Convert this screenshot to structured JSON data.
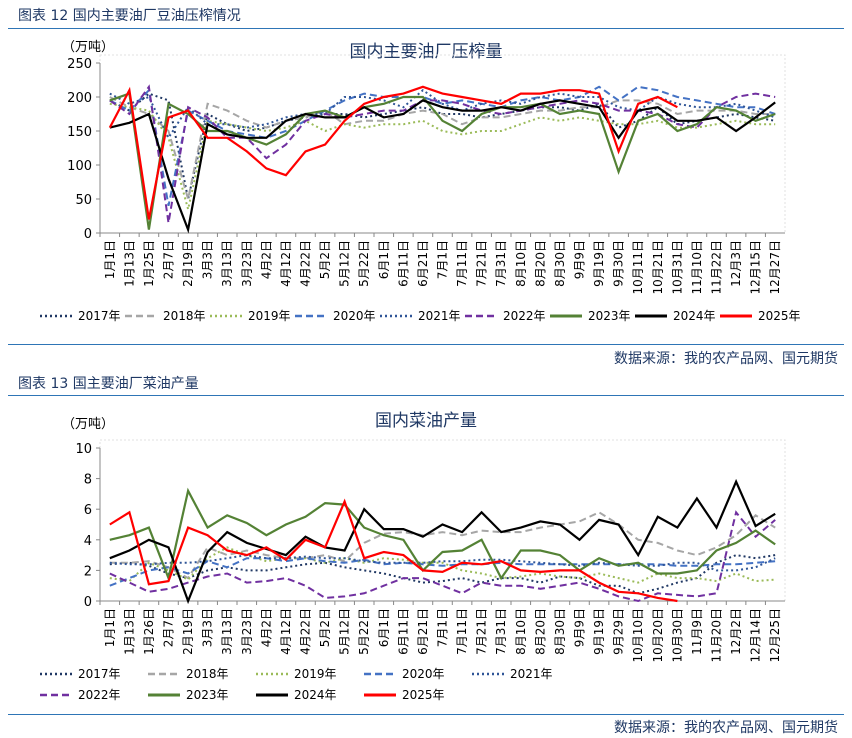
{
  "figures": [
    {
      "heading": "图表 12 国内主要油厂豆油压榨情况",
      "source": "数据来源：我的农产品网、国元期货"
    },
    {
      "heading": "图表 13 国主要油厂菜油产量",
      "source": "数据来源：我的农产品网、国元期货"
    }
  ],
  "chart_data": [
    {
      "type": "line",
      "title": "国内主要油厂压榨量",
      "ylabel": "（万吨）",
      "ylim": [
        0,
        250
      ],
      "yticks": [
        0,
        50,
        100,
        150,
        200,
        250
      ],
      "grid": false,
      "legend": "bottom",
      "categories": [
        "1月1日",
        "1月13日",
        "1月25日",
        "2月7日",
        "2月19日",
        "3月3日",
        "3月13日",
        "3月23日",
        "4月2日",
        "4月12日",
        "4月22日",
        "5月2日",
        "5月12日",
        "5月22日",
        "6月1日",
        "6月11日",
        "6月21日",
        "7月1日",
        "7月11日",
        "7月21日",
        "7月31日",
        "8月10日",
        "8月20日",
        "8月30日",
        "9月9日",
        "9月19日",
        "9月30日",
        "10月11日",
        "10月21日",
        "10月31日",
        "11月10日",
        "11月22日",
        "12月3日",
        "12月15日",
        "12月27日"
      ],
      "series": [
        {
          "name": "2017年",
          "color": "#203864",
          "style": "dot",
          "values": [
            195,
            180,
            205,
            195,
            50,
            175,
            160,
            150,
            155,
            165,
            170,
            175,
            175,
            170,
            175,
            180,
            185,
            175,
            175,
            170,
            175,
            180,
            185,
            185,
            180,
            190,
            155,
            165,
            185,
            160,
            165,
            170,
            175,
            170,
            165
          ]
        },
        {
          "name": "2018年",
          "color": "#a6a6a6",
          "style": "dash",
          "values": [
            200,
            185,
            175,
            150,
            50,
            190,
            180,
            165,
            155,
            165,
            170,
            180,
            160,
            165,
            165,
            175,
            180,
            175,
            160,
            170,
            170,
            175,
            180,
            180,
            185,
            185,
            195,
            195,
            190,
            175,
            180,
            180,
            180,
            175,
            175
          ]
        },
        {
          "name": "2019年",
          "color": "#9bbb59",
          "style": "dot",
          "values": [
            190,
            185,
            180,
            140,
            35,
            165,
            160,
            155,
            150,
            155,
            165,
            150,
            160,
            155,
            160,
            160,
            165,
            150,
            145,
            150,
            150,
            160,
            170,
            165,
            170,
            165,
            160,
            160,
            165,
            155,
            155,
            160,
            165,
            160,
            160
          ]
        },
        {
          "name": "2020年",
          "color": "#4472c4",
          "style": "dash",
          "values": [
            195,
            180,
            210,
            40,
            180,
            165,
            150,
            145,
            140,
            150,
            165,
            180,
            195,
            205,
            200,
            200,
            200,
            190,
            195,
            190,
            185,
            195,
            200,
            195,
            200,
            215,
            195,
            215,
            210,
            200,
            195,
            190,
            185,
            185,
            175
          ]
        },
        {
          "name": "2021年",
          "color": "#2f5597",
          "style": "dot",
          "values": [
            205,
            190,
            200,
            140,
            185,
            160,
            160,
            155,
            160,
            170,
            175,
            175,
            200,
            200,
            195,
            185,
            210,
            190,
            180,
            190,
            195,
            190,
            200,
            205,
            200,
            200,
            185,
            180,
            200,
            190,
            185,
            185,
            190,
            180,
            170
          ]
        },
        {
          "name": "2022年",
          "color": "#7030a0",
          "style": "dash",
          "values": [
            195,
            175,
            215,
            15,
            185,
            170,
            140,
            140,
            110,
            130,
            165,
            175,
            170,
            175,
            180,
            180,
            195,
            195,
            190,
            180,
            175,
            180,
            185,
            190,
            195,
            190,
            180,
            180,
            175,
            160,
            155,
            185,
            200,
            205,
            200
          ]
        },
        {
          "name": "2023年",
          "color": "#548235",
          "style": "solid",
          "values": [
            195,
            205,
            5,
            190,
            175,
            150,
            150,
            140,
            130,
            145,
            175,
            180,
            170,
            185,
            190,
            200,
            200,
            165,
            150,
            175,
            185,
            185,
            190,
            175,
            180,
            175,
            90,
            165,
            175,
            150,
            160,
            185,
            180,
            165,
            175
          ]
        },
        {
          "name": "2024年",
          "color": "#000000",
          "style": "solid",
          "values": [
            155,
            162,
            175,
            80,
            5,
            160,
            145,
            140,
            140,
            165,
            175,
            170,
            170,
            185,
            170,
            175,
            195,
            185,
            180,
            180,
            185,
            180,
            190,
            195,
            190,
            185,
            140,
            180,
            185,
            165,
            165,
            170,
            150,
            170,
            192
          ]
        },
        {
          "name": "2025年",
          "color": "#ff0000",
          "style": "solid",
          "values": [
            155,
            210,
            20,
            170,
            180,
            140,
            140,
            120,
            95,
            85,
            120,
            130,
            165,
            190,
            200,
            205,
            215,
            205,
            200,
            195,
            190,
            205,
            205,
            210,
            210,
            205,
            120,
            190,
            200,
            185,
            null,
            null,
            null,
            null,
            null
          ]
        }
      ]
    },
    {
      "type": "line",
      "title": "国内菜油产量",
      "ylabel": "（万吨）",
      "ylim": [
        0,
        10
      ],
      "yticks": [
        0,
        2,
        4,
        6,
        8,
        10
      ],
      "grid": false,
      "legend": "bottom",
      "categories": [
        "1月1日",
        "1月13日",
        "1月26日",
        "2月7日",
        "2月19日",
        "3月3日",
        "3月13日",
        "3月23日",
        "4月2日",
        "4月12日",
        "4月22日",
        "5月2日",
        "5月12日",
        "5月22日",
        "6月1日",
        "6月11日",
        "6月21日",
        "7月1日",
        "7月11日",
        "7月21日",
        "7月31日",
        "8月10日",
        "8月20日",
        "8月30日",
        "9月9日",
        "9月19日",
        "9月29日",
        "10月10日",
        "10月20日",
        "10月30日",
        "11月9日",
        "11月20日",
        "12月2日",
        "12月14日",
        "12月25日"
      ],
      "series": [
        {
          "name": "2017年",
          "color": "#203864",
          "style": "dot",
          "values": [
            2.4,
            2.5,
            2.3,
            1.8,
            1.5,
            2.0,
            2.2,
            2.0,
            2.0,
            2.2,
            2.4,
            2.5,
            2.2,
            2.0,
            1.8,
            1.5,
            1.2,
            1.3,
            1.5,
            1.2,
            1.5,
            1.5,
            1.2,
            1.6,
            1.5,
            1.0,
            1.0,
            0.5,
            0.8,
            1.2,
            1.5,
            2.5,
            3.0,
            2.8,
            3.0
          ]
        },
        {
          "name": "2018年",
          "color": "#a6a6a6",
          "style": "dash",
          "values": [
            2.5,
            2.5,
            2.6,
            2.2,
            1.5,
            3.5,
            3.0,
            3.3,
            3.0,
            2.8,
            2.8,
            3.0,
            2.6,
            3.8,
            4.4,
            4.5,
            4.3,
            4.5,
            4.3,
            4.6,
            4.5,
            4.5,
            4.8,
            5.0,
            5.2,
            5.8,
            5.0,
            4.0,
            3.8,
            3.3,
            3.0,
            3.5,
            4.3,
            5.6,
            4.8
          ]
        },
        {
          "name": "2019年",
          "color": "#9bbb59",
          "style": "dot",
          "values": [
            1.5,
            1.3,
            2.5,
            2.0,
            1.4,
            2.8,
            3.5,
            3.0,
            2.6,
            2.8,
            2.8,
            2.5,
            2.8,
            2.5,
            2.8,
            2.7,
            2.5,
            2.5,
            2.0,
            1.8,
            1.5,
            1.6,
            1.8,
            1.6,
            1.5,
            1.8,
            1.5,
            1.2,
            1.8,
            1.5,
            1.5,
            1.3,
            1.8,
            1.3,
            1.4
          ]
        },
        {
          "name": "2020年",
          "color": "#4472c4",
          "style": "dash",
          "values": [
            1.0,
            1.5,
            2.0,
            2.2,
            1.8,
            2.6,
            2.2,
            2.8,
            2.8,
            2.6,
            2.8,
            2.6,
            2.5,
            2.7,
            2.4,
            2.5,
            2.4,
            2.3,
            2.4,
            2.4,
            2.5,
            2.4,
            2.4,
            2.4,
            2.4,
            2.4,
            2.4,
            2.4,
            2.4,
            2.3,
            2.3,
            2.4,
            2.4,
            2.5,
            2.6
          ]
        },
        {
          "name": "2021年",
          "color": "#2f5597",
          "style": "dot",
          "values": [
            2.5,
            2.4,
            2.4,
            2.5,
            2.5,
            2.6,
            2.8,
            3.0,
            2.8,
            2.8,
            2.9,
            2.8,
            2.8,
            2.6,
            2.5,
            2.5,
            2.5,
            2.6,
            2.6,
            2.7,
            2.7,
            2.6,
            2.5,
            2.4,
            2.3,
            2.5,
            2.4,
            2.3,
            2.3,
            2.5,
            2.5,
            2.0,
            2.0,
            2.2,
            2.8
          ]
        },
        {
          "name": "2022年",
          "color": "#7030a0",
          "style": "dash",
          "values": [
            1.8,
            1.2,
            0.6,
            0.8,
            1.2,
            1.6,
            1.8,
            1.2,
            1.3,
            1.5,
            1.0,
            0.2,
            0.3,
            0.5,
            1.0,
            1.5,
            1.5,
            1.0,
            0.5,
            1.2,
            1.0,
            1.0,
            0.8,
            1.0,
            1.2,
            0.8,
            0.3,
            0.0,
            0.5,
            0.4,
            0.3,
            0.5,
            5.8,
            4.2,
            5.3
          ]
        },
        {
          "name": "2023年",
          "color": "#548235",
          "style": "solid",
          "values": [
            4.0,
            4.3,
            4.8,
            1.5,
            7.2,
            4.8,
            5.6,
            5.1,
            4.3,
            5.0,
            5.5,
            6.4,
            6.3,
            4.8,
            4.3,
            4.0,
            2.0,
            3.2,
            3.3,
            4.0,
            1.5,
            3.3,
            3.3,
            3.0,
            2.0,
            2.8,
            2.3,
            2.5,
            1.8,
            1.8,
            2.0,
            3.3,
            3.8,
            4.6,
            3.7
          ]
        },
        {
          "name": "2024年",
          "color": "#000000",
          "style": "solid",
          "values": [
            2.8,
            3.3,
            4.0,
            3.5,
            0.0,
            3.2,
            4.5,
            3.8,
            3.4,
            3.0,
            4.2,
            3.5,
            3.3,
            6.0,
            4.7,
            4.7,
            4.2,
            5.0,
            4.5,
            5.8,
            4.5,
            4.8,
            5.2,
            5.0,
            4.0,
            5.3,
            5.0,
            3.0,
            5.5,
            4.8,
            6.7,
            4.8,
            7.8,
            4.9,
            5.7
          ]
        },
        {
          "name": "2025年",
          "color": "#ff0000",
          "style": "solid",
          "values": [
            5.0,
            5.8,
            1.1,
            1.3,
            4.8,
            4.3,
            3.3,
            3.0,
            3.5,
            2.7,
            4.0,
            3.5,
            6.5,
            2.8,
            3.2,
            3.0,
            2.0,
            1.9,
            2.5,
            2.4,
            2.6,
            2.0,
            1.9,
            2.0,
            2.0,
            1.2,
            0.6,
            0.5,
            0.2,
            0.0,
            null,
            null,
            null,
            null,
            null
          ]
        }
      ]
    }
  ]
}
